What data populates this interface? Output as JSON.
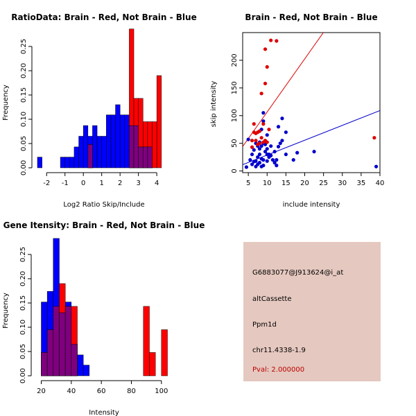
{
  "colors": {
    "red": "#ff0000",
    "blue": "#0000ff",
    "overlap": "#7f007f",
    "red_point": "#dd0000",
    "blue_point": "#0000cc",
    "info_bg": "#e5c8bf",
    "pval": "#bb0000"
  },
  "chart_data": [
    {
      "id": "ratio",
      "type": "histogram",
      "title": "RatioData: Brain - Red, Not Brain - Blue",
      "xlabel": "Log2 Ratio Skip/Include",
      "ylabel": "Frequency",
      "xlim": [
        -2.5,
        4.75
      ],
      "ylim": [
        0,
        0.3
      ],
      "xticks": [
        -2,
        -1,
        0,
        1,
        2,
        3,
        4
      ],
      "yticks": [
        0.0,
        0.05,
        0.1,
        0.15,
        0.2,
        0.25
      ],
      "ytick_labels": [
        "0.00",
        "0.05",
        "0.10",
        "0.15",
        "0.20",
        "0.25"
      ],
      "bin_width": 0.25,
      "blue_bins": [
        {
          "x0": -2.5,
          "v": 0.022
        },
        {
          "x0": -1.25,
          "v": 0.022
        },
        {
          "x0": -1.0,
          "v": 0.022
        },
        {
          "x0": -0.75,
          "v": 0.022
        },
        {
          "x0": -0.5,
          "v": 0.043
        },
        {
          "x0": -0.25,
          "v": 0.065
        },
        {
          "x0": 0.0,
          "v": 0.087
        },
        {
          "x0": 0.25,
          "v": 0.065
        },
        {
          "x0": 0.5,
          "v": 0.087
        },
        {
          "x0": 0.75,
          "v": 0.065
        },
        {
          "x0": 1.0,
          "v": 0.065
        },
        {
          "x0": 1.25,
          "v": 0.109
        },
        {
          "x0": 1.5,
          "v": 0.109
        },
        {
          "x0": 1.75,
          "v": 0.13
        },
        {
          "x0": 2.0,
          "v": 0.109
        },
        {
          "x0": 2.25,
          "v": 0.109
        },
        {
          "x0": 2.5,
          "v": 0.087
        },
        {
          "x0": 2.75,
          "v": 0.087
        },
        {
          "x0": 3.0,
          "v": 0.043
        },
        {
          "x0": 3.25,
          "v": 0.043
        },
        {
          "x0": 3.5,
          "v": 0.043
        }
      ],
      "red_bins": [
        {
          "x0": 0.25,
          "v": 0.048
        },
        {
          "x0": 2.5,
          "v": 0.286
        },
        {
          "x0": 2.75,
          "v": 0.143
        },
        {
          "x0": 3.0,
          "v": 0.143
        },
        {
          "x0": 3.25,
          "v": 0.095
        },
        {
          "x0": 3.5,
          "v": 0.095
        },
        {
          "x0": 3.75,
          "v": 0.095
        },
        {
          "x0": 4.0,
          "v": 0.19
        }
      ]
    },
    {
      "id": "scatter",
      "type": "scatter",
      "title": "Brain - Red, Not Brain - Blue",
      "xlabel": "include intensity",
      "ylabel": "skip intensity",
      "xlim": [
        3.5,
        40.0
      ],
      "ylim": [
        -3,
        250
      ],
      "xticks": [
        5,
        10,
        15,
        20,
        25,
        30,
        35,
        40
      ],
      "yticks": [
        0,
        50,
        100,
        150,
        200
      ],
      "red_points": [
        [
          6,
          43
        ],
        [
          6,
          55
        ],
        [
          6.5,
          85
        ],
        [
          6.5,
          70
        ],
        [
          7,
          68
        ],
        [
          7,
          55
        ],
        [
          7.5,
          48
        ],
        [
          7.5,
          70
        ],
        [
          8,
          50
        ],
        [
          8,
          72
        ],
        [
          8.5,
          140
        ],
        [
          8.5,
          60
        ],
        [
          9,
          85
        ],
        [
          9,
          52
        ],
        [
          9.5,
          158
        ],
        [
          9.5,
          220
        ],
        [
          9.5,
          55
        ],
        [
          10,
          188
        ],
        [
          10,
          52
        ],
        [
          10.5,
          75
        ],
        [
          11,
          236
        ],
        [
          12.5,
          235
        ],
        [
          38.5,
          60
        ]
      ],
      "blue_points": [
        [
          4.5,
          7
        ],
        [
          5,
          57
        ],
        [
          5.5,
          20
        ],
        [
          6,
          12
        ],
        [
          6,
          30
        ],
        [
          6.5,
          38
        ],
        [
          6.5,
          17
        ],
        [
          7,
          50
        ],
        [
          7,
          18
        ],
        [
          7,
          8
        ],
        [
          7.5,
          25
        ],
        [
          7.5,
          45
        ],
        [
          7.5,
          12
        ],
        [
          8,
          30
        ],
        [
          8,
          15
        ],
        [
          8,
          52
        ],
        [
          8,
          40
        ],
        [
          8.5,
          45
        ],
        [
          8.5,
          22
        ],
        [
          8.5,
          8
        ],
        [
          8.5,
          75
        ],
        [
          9,
          90
        ],
        [
          9,
          105
        ],
        [
          9,
          20
        ],
        [
          9,
          50
        ],
        [
          9,
          10
        ],
        [
          9.5,
          35
        ],
        [
          9.5,
          48
        ],
        [
          10,
          65
        ],
        [
          10,
          40
        ],
        [
          10,
          30
        ],
        [
          10,
          18
        ],
        [
          10.5,
          25
        ],
        [
          10.5,
          30
        ],
        [
          11,
          28
        ],
        [
          11,
          45
        ],
        [
          11.5,
          20
        ],
        [
          12,
          35
        ],
        [
          12,
          15
        ],
        [
          12.5,
          10
        ],
        [
          12.5,
          20
        ],
        [
          13,
          44
        ],
        [
          13,
          80
        ],
        [
          13.5,
          50
        ],
        [
          14,
          55
        ],
        [
          14,
          95
        ],
        [
          15,
          70
        ],
        [
          15,
          30
        ],
        [
          17,
          20
        ],
        [
          18,
          33
        ],
        [
          22.5,
          35
        ],
        [
          39,
          8
        ]
      ],
      "red_line": {
        "intercept": 10.5,
        "slope": 9.6
      },
      "blue_line": {
        "intercept": 2.0,
        "slope": 2.68
      }
    },
    {
      "id": "gene",
      "type": "histogram",
      "title": "Gene Itensity: Brain - Red, Not Brain - Blue",
      "xlabel": "Intensity",
      "ylabel": "Frequency",
      "xlim": [
        17,
        107
      ],
      "ylim": [
        0,
        0.3
      ],
      "xticks": [
        20,
        40,
        60,
        80,
        100
      ],
      "yticks": [
        0.0,
        0.05,
        0.1,
        0.15,
        0.2,
        0.25
      ],
      "ytick_labels": [
        "0.00",
        "0.05",
        "0.10",
        "0.15",
        "0.20",
        "0.25"
      ],
      "bin_width": 4,
      "blue_bins": [
        {
          "x0": 20,
          "v": 0.152
        },
        {
          "x0": 24,
          "v": 0.174
        },
        {
          "x0": 28,
          "v": 0.283
        },
        {
          "x0": 32,
          "v": 0.13
        },
        {
          "x0": 36,
          "v": 0.152
        },
        {
          "x0": 40,
          "v": 0.065
        },
        {
          "x0": 44,
          "v": 0.043
        },
        {
          "x0": 48,
          "v": 0.022
        }
      ],
      "red_bins": [
        {
          "x0": 20,
          "v": 0.048
        },
        {
          "x0": 24,
          "v": 0.095
        },
        {
          "x0": 28,
          "v": 0.143
        },
        {
          "x0": 32,
          "v": 0.19
        },
        {
          "x0": 36,
          "v": 0.143
        },
        {
          "x0": 40,
          "v": 0.143
        },
        {
          "x0": 88,
          "v": 0.143
        },
        {
          "x0": 92,
          "v": 0.048
        },
        {
          "x0": 100,
          "v": 0.095
        }
      ]
    }
  ],
  "info": {
    "probe_id": "G6883077@J913624@i_at",
    "event_type": "altCassette",
    "gene": "Ppm1d",
    "location": "chr11.4338-1.9",
    "pval": "Pval: 2.000000"
  }
}
